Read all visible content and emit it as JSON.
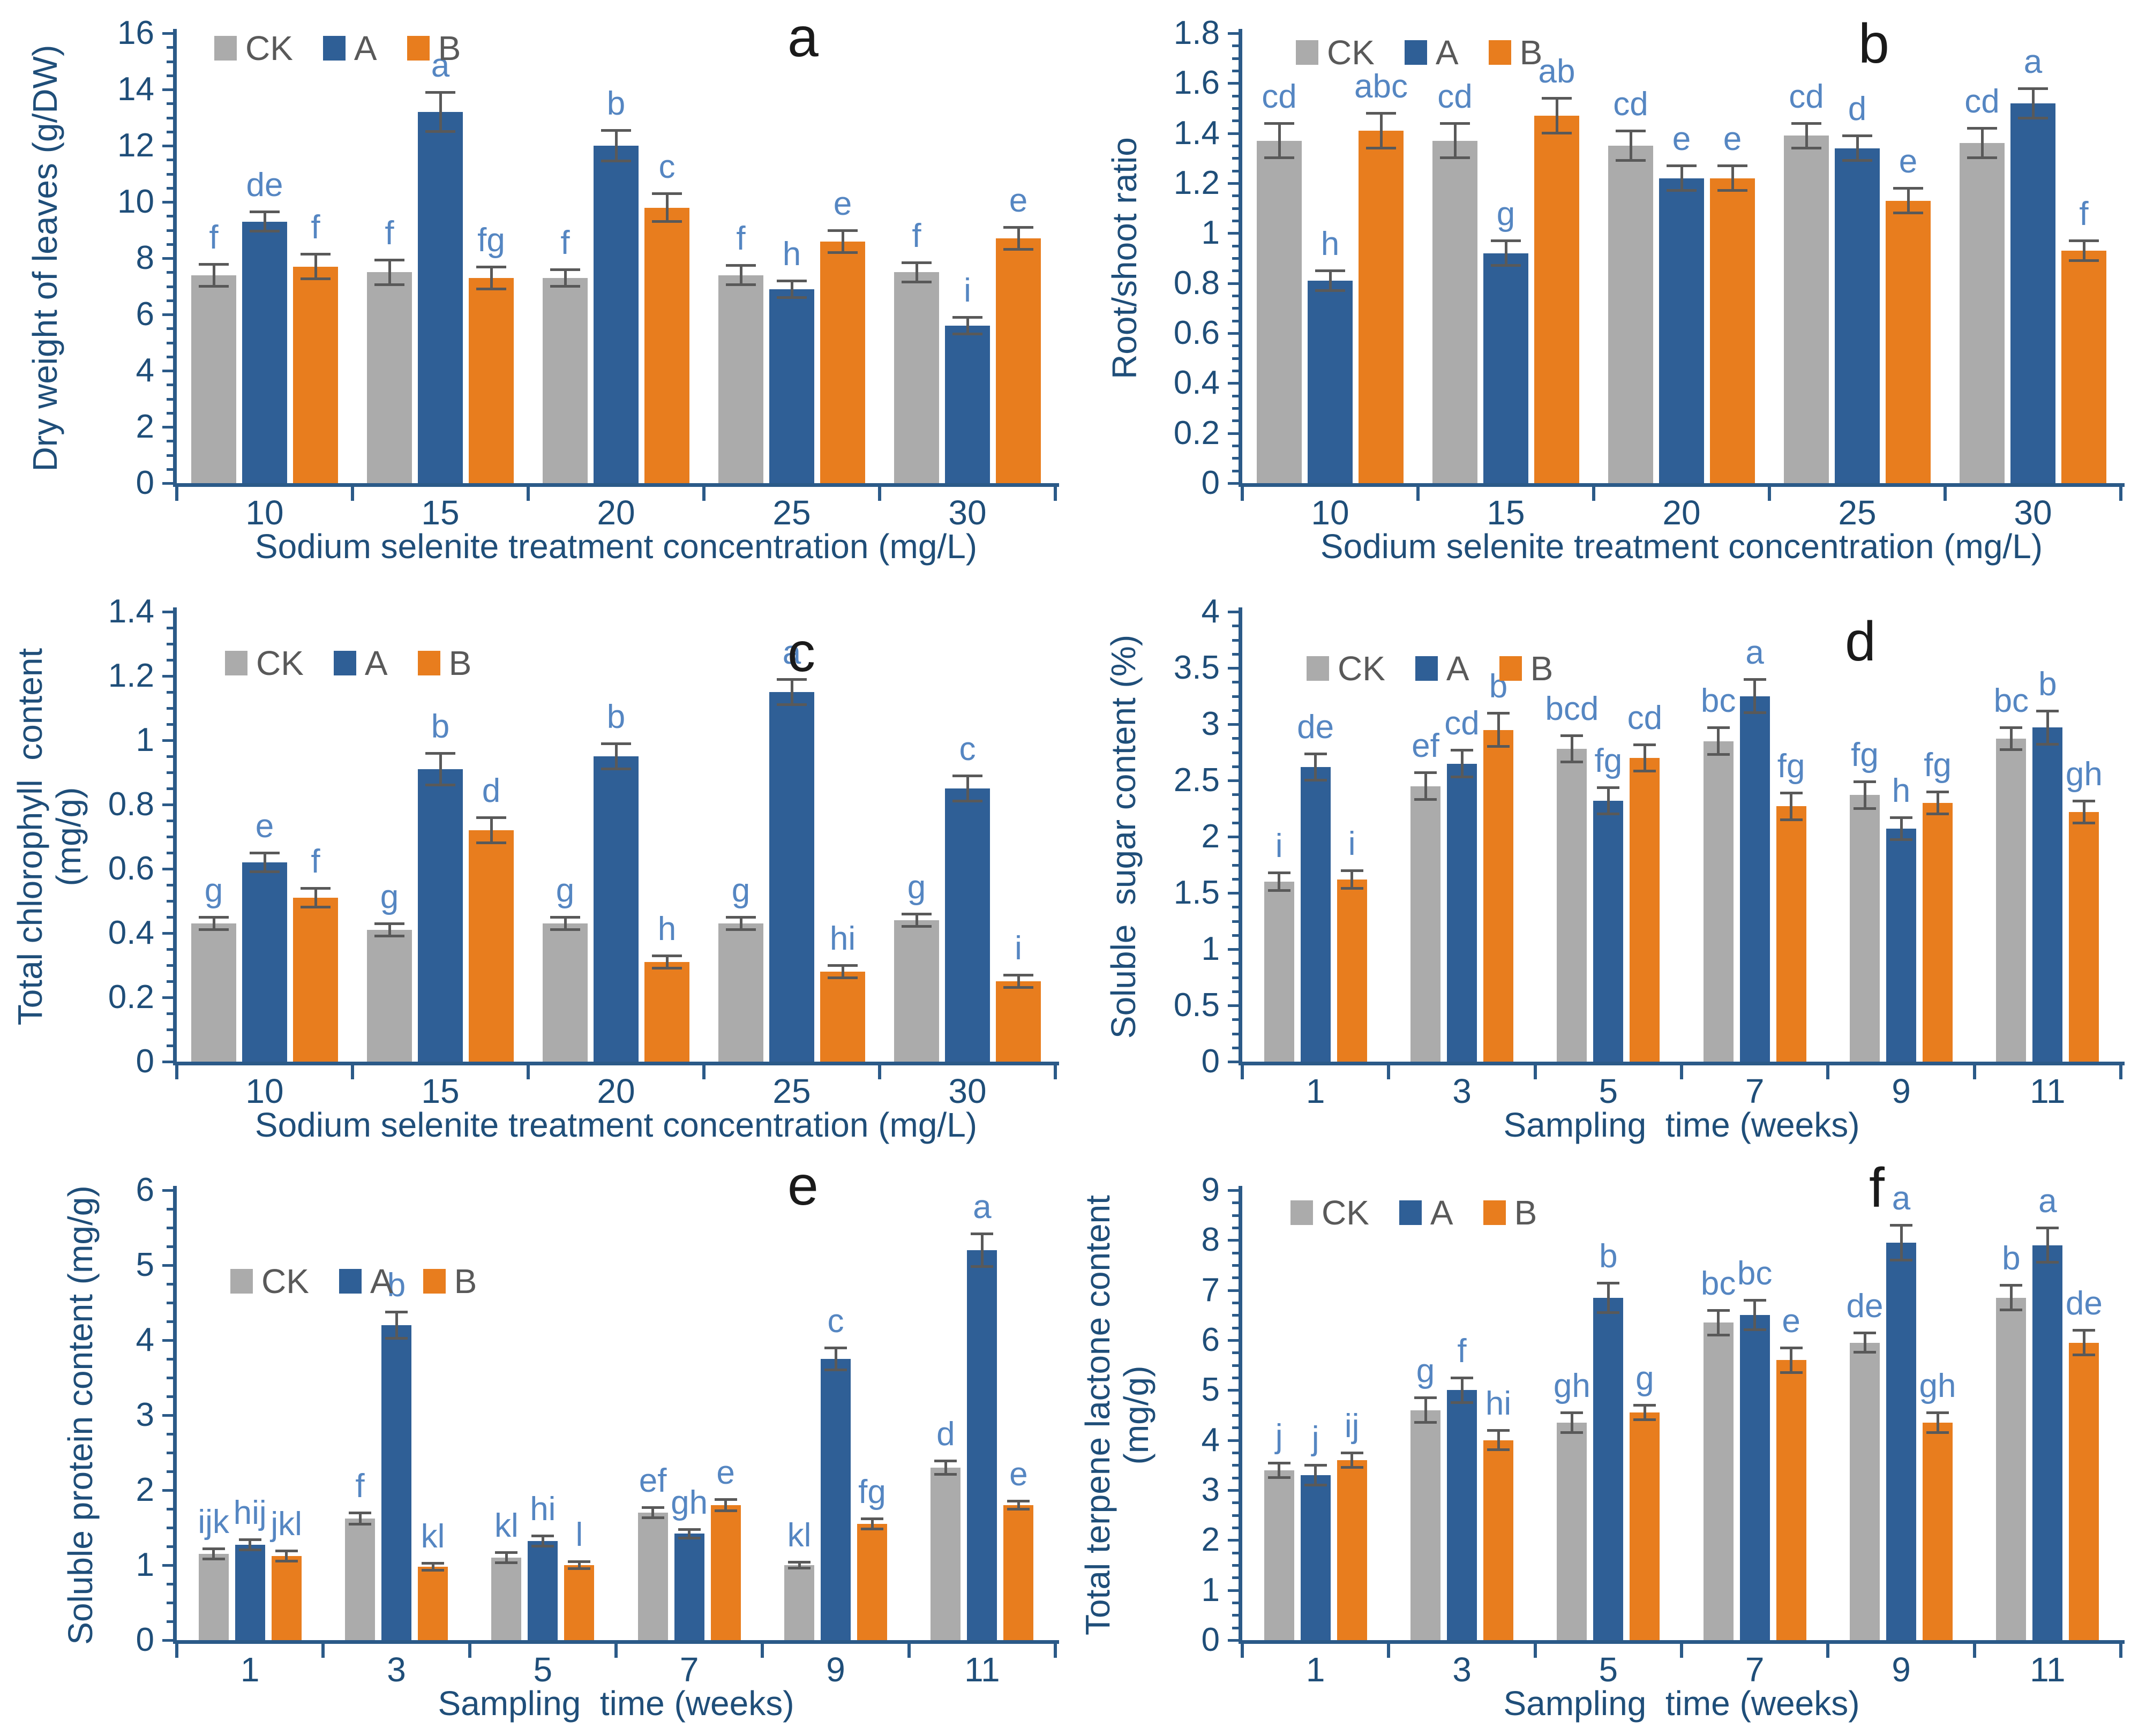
{
  "figure": {
    "series_names": [
      "CK",
      "A",
      "B"
    ],
    "colors": {
      "ck_bar": "#ABABAB",
      "a_bar": "#2F5F96",
      "b_bar": "#E87D1E",
      "sig_letter": "#5586C2",
      "axis_text": "#1F4E79",
      "axis_line": "#2B5A88",
      "error_bar": "#595959",
      "legend_text": "#595959",
      "panel_letter": "#1A1A1A",
      "background": "#FFFFFF"
    }
  },
  "chart_data": [
    {
      "panel_letter": "a",
      "type": "bar",
      "ylabel_lines": [
        "Dry weight of leaves (g/DW)"
      ],
      "xlabel": "Sodium selenite treatment concentration (mg/L)",
      "ylim": [
        0,
        16
      ],
      "ymajor": 2,
      "yticks": [
        "0",
        "2",
        "4",
        "6",
        "8",
        "10",
        "12",
        "14",
        "16"
      ],
      "categories": [
        "10",
        "15",
        "20",
        "25",
        "30"
      ],
      "legend_position": "top-left-inside",
      "grid": false,
      "series": [
        {
          "name": "CK",
          "values": [
            7.4,
            7.5,
            7.3,
            7.4,
            7.5
          ],
          "errors": [
            0.4,
            0.45,
            0.3,
            0.35,
            0.35
          ],
          "letters": [
            "f",
            "f",
            "f",
            "f",
            "f"
          ]
        },
        {
          "name": "A",
          "values": [
            9.3,
            13.2,
            12.0,
            6.9,
            5.6
          ],
          "errors": [
            0.35,
            0.7,
            0.55,
            0.3,
            0.3
          ],
          "letters": [
            "de",
            "a",
            "b",
            "h",
            "i"
          ]
        },
        {
          "name": "B",
          "values": [
            7.7,
            7.3,
            9.8,
            8.6,
            8.7
          ],
          "errors": [
            0.45,
            0.4,
            0.5,
            0.4,
            0.4
          ],
          "letters": [
            "f",
            "fg",
            "c",
            "e",
            "e"
          ]
        }
      ]
    },
    {
      "panel_letter": "b",
      "type": "bar",
      "ylabel_lines": [
        "Root/shoot ratio"
      ],
      "xlabel": "Sodium selenite treatment concentration (mg/L)",
      "ylim": [
        0,
        1.8
      ],
      "ymajor": 0.2,
      "yticks": [
        "0",
        "0.2",
        "0.4",
        "0.6",
        "0.8",
        "1",
        "1.2",
        "1.4",
        "1.6",
        "1.8"
      ],
      "categories": [
        "10",
        "15",
        "20",
        "25",
        "30"
      ],
      "legend_position": "top-left-inside",
      "grid": false,
      "series": [
        {
          "name": "CK",
          "values": [
            1.37,
            1.37,
            1.35,
            1.39,
            1.36
          ],
          "errors": [
            0.07,
            0.07,
            0.06,
            0.05,
            0.06
          ],
          "letters": [
            "cd",
            "cd",
            "cd",
            "cd",
            "cd"
          ]
        },
        {
          "name": "A",
          "values": [
            0.81,
            0.92,
            1.22,
            1.34,
            1.52
          ],
          "errors": [
            0.04,
            0.05,
            0.05,
            0.05,
            0.06
          ],
          "letters": [
            "h",
            "g",
            "e",
            "d",
            "a"
          ]
        },
        {
          "name": "B",
          "values": [
            1.41,
            1.47,
            1.22,
            1.13,
            0.93
          ],
          "errors": [
            0.07,
            0.07,
            0.05,
            0.05,
            0.04
          ],
          "letters": [
            "abc",
            "ab",
            "e",
            "e",
            "f"
          ]
        }
      ]
    },
    {
      "panel_letter": "c",
      "type": "bar",
      "ylabel_lines": [
        "Total chlorophyll  content",
        "(mg/g)"
      ],
      "xlabel": "Sodium selenite treatment concentration (mg/L)",
      "ylim": [
        0,
        1.4
      ],
      "ymajor": 0.2,
      "yticks": [
        "0",
        "0.2",
        "0.4",
        "0.6",
        "0.8",
        "1",
        "1.2",
        "1.4"
      ],
      "categories": [
        "10",
        "15",
        "20",
        "25",
        "30"
      ],
      "legend_position": "top-left-inside",
      "grid": false,
      "series": [
        {
          "name": "CK",
          "values": [
            0.43,
            0.41,
            0.43,
            0.43,
            0.44
          ],
          "errors": [
            0.02,
            0.02,
            0.02,
            0.02,
            0.02
          ],
          "letters": [
            "g",
            "g",
            "g",
            "g",
            "g"
          ]
        },
        {
          "name": "A",
          "values": [
            0.62,
            0.91,
            0.95,
            1.15,
            0.85
          ],
          "errors": [
            0.03,
            0.05,
            0.04,
            0.04,
            0.04
          ],
          "letters": [
            "e",
            "b",
            "b",
            "a",
            "c"
          ]
        },
        {
          "name": "B",
          "values": [
            0.51,
            0.72,
            0.31,
            0.28,
            0.25
          ],
          "errors": [
            0.03,
            0.04,
            0.02,
            0.02,
            0.02
          ],
          "letters": [
            "f",
            "d",
            "h",
            "hi",
            "i"
          ]
        }
      ]
    },
    {
      "panel_letter": "d",
      "type": "bar",
      "ylabel_lines": [
        "Soluble  sugar content (%)"
      ],
      "xlabel": "Sampling  time (weeks)",
      "ylim": [
        0,
        4
      ],
      "ymajor": 0.5,
      "yticks": [
        "0",
        "0.5",
        "1",
        "1.5",
        "2",
        "2.5",
        "3",
        "3.5",
        "4"
      ],
      "categories": [
        "1",
        "3",
        "5",
        "7",
        "9",
        "11"
      ],
      "legend_position": "top-left-inside",
      "grid": false,
      "series": [
        {
          "name": "CK",
          "values": [
            1.6,
            2.45,
            2.78,
            2.85,
            2.37,
            2.87
          ],
          "errors": [
            0.08,
            0.12,
            0.12,
            0.12,
            0.12,
            0.1
          ],
          "letters": [
            "i",
            "ef",
            "bcd",
            "bc",
            "fg",
            "bc"
          ]
        },
        {
          "name": "A",
          "values": [
            2.62,
            2.65,
            2.32,
            3.25,
            2.07,
            2.97
          ],
          "errors": [
            0.12,
            0.12,
            0.12,
            0.15,
            0.1,
            0.15
          ],
          "letters": [
            "de",
            "cd",
            "fg",
            "a",
            "h",
            "b"
          ]
        },
        {
          "name": "B",
          "values": [
            1.62,
            2.95,
            2.7,
            2.27,
            2.3,
            2.22
          ],
          "errors": [
            0.08,
            0.15,
            0.12,
            0.12,
            0.1,
            0.1
          ],
          "letters": [
            "i",
            "b",
            "cd",
            "fg",
            "fg",
            "gh"
          ]
        }
      ]
    },
    {
      "panel_letter": "e",
      "type": "bar",
      "ylabel_lines": [
        "Soluble protein content (mg/g)"
      ],
      "xlabel": "Sampling  time (weeks)",
      "ylim": [
        0,
        6
      ],
      "ymajor": 1,
      "yticks": [
        "0",
        "1",
        "2",
        "3",
        "4",
        "5",
        "6"
      ],
      "categories": [
        "1",
        "3",
        "5",
        "7",
        "9",
        "11"
      ],
      "legend_position": "top-left-inside",
      "grid": false,
      "series": [
        {
          "name": "CK",
          "values": [
            1.15,
            1.62,
            1.1,
            1.7,
            1.0,
            2.3
          ],
          "errors": [
            0.07,
            0.08,
            0.07,
            0.07,
            0.04,
            0.09
          ],
          "letters": [
            "ijk",
            "f",
            "kl",
            "ef",
            "kl",
            "d"
          ]
        },
        {
          "name": "A",
          "values": [
            1.27,
            4.2,
            1.32,
            1.42,
            3.75,
            5.2
          ],
          "errors": [
            0.07,
            0.18,
            0.07,
            0.06,
            0.15,
            0.22
          ],
          "letters": [
            "hij",
            "b",
            "hi",
            "gh",
            "c",
            "a"
          ]
        },
        {
          "name": "B",
          "values": [
            1.12,
            0.98,
            1.0,
            1.8,
            1.55,
            1.8
          ],
          "errors": [
            0.07,
            0.05,
            0.05,
            0.08,
            0.07,
            0.06
          ],
          "letters": [
            "jkl",
            "kl",
            "l",
            "e",
            "fg",
            "e"
          ]
        }
      ]
    },
    {
      "panel_letter": "f",
      "type": "bar",
      "ylabel_lines": [
        "Total terpene lactone content",
        "(mg/g)"
      ],
      "xlabel": "Sampling  time (weeks)",
      "ylim": [
        0,
        9
      ],
      "ymajor": 1,
      "yticks": [
        "0",
        "1",
        "2",
        "3",
        "4",
        "5",
        "6",
        "7",
        "8",
        "9"
      ],
      "categories": [
        "1",
        "3",
        "5",
        "7",
        "9",
        "11"
      ],
      "legend_position": "top-left-inside",
      "grid": false,
      "series": [
        {
          "name": "CK",
          "values": [
            3.4,
            4.6,
            4.35,
            6.35,
            5.95,
            6.85
          ],
          "errors": [
            0.15,
            0.25,
            0.2,
            0.25,
            0.2,
            0.25
          ],
          "letters": [
            "j",
            "g",
            "gh",
            "bc",
            "de",
            "b"
          ]
        },
        {
          "name": "A",
          "values": [
            3.3,
            5.0,
            6.85,
            6.5,
            7.95,
            7.9
          ],
          "errors": [
            0.2,
            0.25,
            0.3,
            0.3,
            0.35,
            0.35
          ],
          "letters": [
            "j",
            "f",
            "b",
            "bc",
            "a",
            "a"
          ]
        },
        {
          "name": "B",
          "values": [
            3.6,
            4.0,
            4.55,
            5.6,
            4.35,
            5.95
          ],
          "errors": [
            0.15,
            0.2,
            0.15,
            0.25,
            0.2,
            0.25
          ],
          "letters": [
            "ij",
            "hi",
            "g",
            "e",
            "gh",
            "de"
          ]
        }
      ]
    }
  ]
}
